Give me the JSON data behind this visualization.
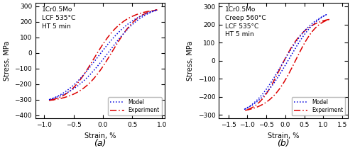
{
  "panel_a": {
    "title_lines": [
      "1Cr0.5Mo",
      "LCF 535°C",
      "HT 5 min"
    ],
    "xlabel": "Strain, %",
    "ylabel": "Stress, MPa",
    "xlim": [
      -1.15,
      1.05
    ],
    "ylim": [
      -420,
      320
    ],
    "xticks": [
      -1.0,
      -0.5,
      0.0,
      0.5,
      1.0
    ],
    "yticks": [
      -400,
      -300,
      -200,
      -100,
      0,
      100,
      200,
      300
    ],
    "label": "(a)",
    "model_color": "#0000dd",
    "experiment_color": "#dd0000"
  },
  "panel_b": {
    "title_lines": [
      "1Cr0.5Mo",
      "Creep 560°C",
      "LCF 535°C",
      "HT 5 min"
    ],
    "xlabel": "Strain, %",
    "ylabel": "Stress, MPa",
    "xlim": [
      -1.75,
      1.65
    ],
    "ylim": [
      -320,
      320
    ],
    "xticks": [
      -1.5,
      -1.0,
      -0.5,
      0.0,
      0.5,
      1.0,
      1.5
    ],
    "yticks": [
      -300,
      -200,
      -100,
      0,
      100,
      200,
      300
    ],
    "label": "(b)",
    "model_color": "#0000dd",
    "experiment_color": "#dd0000"
  }
}
